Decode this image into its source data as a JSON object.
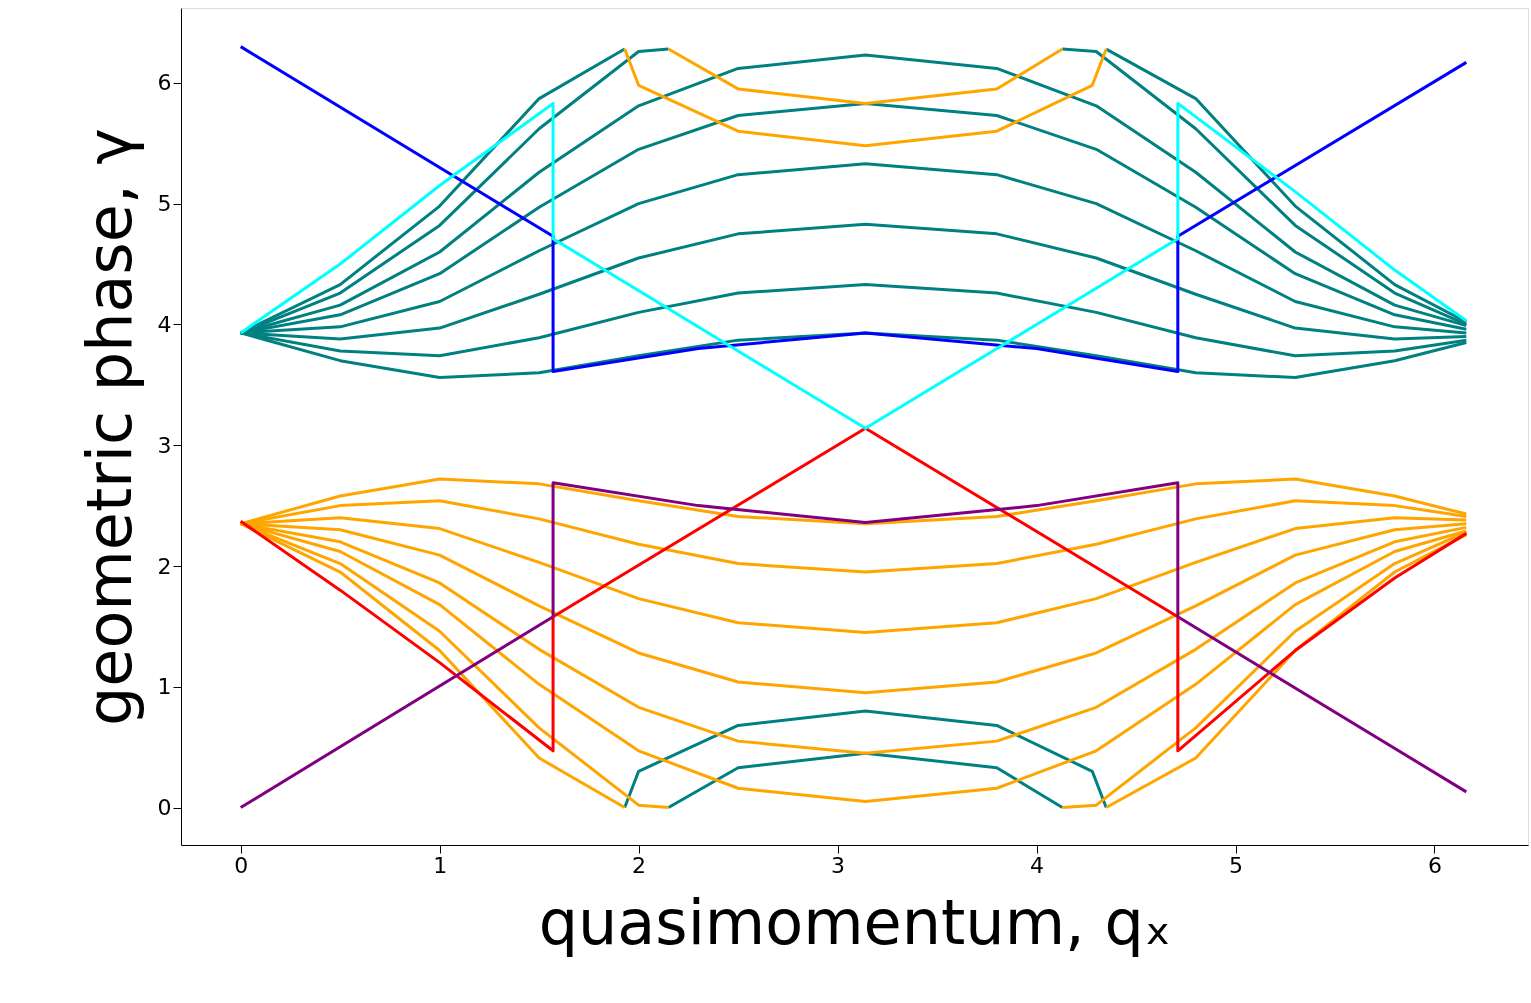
{
  "chart_data": {
    "type": "line",
    "xlabel": "quasimomentum, qₓ",
    "ylabel": "geometric phase, γ",
    "xlim": [
      -0.3,
      6.47
    ],
    "ylim": [
      -0.31,
      6.62
    ],
    "xticks": [
      0,
      1,
      2,
      3,
      4,
      5,
      6
    ],
    "yticks": [
      0,
      1,
      2,
      3,
      4,
      5,
      6
    ],
    "grid": false,
    "marker": "none",
    "line_style": "solid",
    "x": [
      0,
      0.5,
      1,
      1.5,
      2,
      2.5,
      3.14,
      3.8,
      4.3,
      4.8,
      5.3,
      5.8,
      6.16
    ],
    "series": [
      {
        "color": "#008080",
        "values": [
          3.93,
          3.7,
          3.56,
          3.6,
          3.74,
          3.87,
          3.93,
          3.87,
          3.74,
          3.6,
          3.56,
          3.7,
          3.85
        ]
      },
      {
        "color": "#008080",
        "values": [
          3.93,
          3.78,
          3.74,
          3.89,
          4.1,
          4.26,
          4.33,
          4.26,
          4.1,
          3.89,
          3.74,
          3.78,
          3.87
        ]
      },
      {
        "color": "#008080",
        "values": [
          3.93,
          3.88,
          3.97,
          4.25,
          4.55,
          4.75,
          4.83,
          4.75,
          4.55,
          4.25,
          3.97,
          3.88,
          3.9
        ]
      },
      {
        "color": "#008080",
        "values": [
          3.93,
          3.98,
          4.19,
          4.61,
          5.0,
          5.24,
          5.33,
          5.24,
          5.0,
          4.61,
          4.19,
          3.98,
          3.93
        ]
      },
      {
        "color": "#008080",
        "values": [
          3.93,
          4.08,
          4.42,
          4.97,
          5.45,
          5.73,
          5.83,
          5.73,
          5.45,
          4.97,
          4.42,
          4.08,
          3.96
        ]
      },
      {
        "color": "#008080",
        "values": [
          3.93,
          4.16,
          4.6,
          5.26,
          5.81,
          6.12,
          6.23,
          6.12,
          5.81,
          5.26,
          4.6,
          4.16,
          3.99
        ]
      },
      {
        "color": "#008080",
        "x": [
          0,
          0.5,
          1,
          1.5,
          2,
          2.15,
          3.14,
          4.13,
          4.3,
          4.8,
          5.3,
          5.8,
          6.16
        ],
        "values": [
          3.93,
          4.26,
          4.82,
          5.62,
          6.26,
          6.28,
          null,
          6.28,
          6.26,
          5.62,
          4.82,
          4.26,
          4.0
        ]
      },
      {
        "color": "#008080",
        "x": [
          2.15,
          2.5,
          3.14,
          3.8,
          4.13
        ],
        "values": [
          0,
          0.33,
          0.45,
          0.33,
          0
        ]
      },
      {
        "color": "#008080",
        "x": [
          0,
          0.5,
          1,
          1.5,
          1.93,
          3.14,
          4.35,
          4.8,
          5.3,
          5.8,
          6.16
        ],
        "values": [
          3.93,
          4.33,
          4.98,
          5.87,
          6.28,
          null,
          6.28,
          5.87,
          4.98,
          4.33,
          4.02
        ]
      },
      {
        "color": "#008080",
        "x": [
          1.93,
          2,
          2.5,
          3.14,
          3.8,
          4.28,
          4.35
        ],
        "values": [
          0,
          0.3,
          0.68,
          0.8,
          0.68,
          0.3,
          0
        ]
      },
      {
        "color": "#ffa500",
        "values": [
          2.35,
          2.58,
          2.72,
          2.68,
          2.54,
          2.41,
          2.35,
          2.41,
          2.54,
          2.68,
          2.72,
          2.58,
          2.43
        ]
      },
      {
        "color": "#ffa500",
        "values": [
          2.35,
          2.5,
          2.54,
          2.39,
          2.18,
          2.02,
          1.95,
          2.02,
          2.18,
          2.39,
          2.54,
          2.5,
          2.41
        ]
      },
      {
        "color": "#ffa500",
        "values": [
          2.35,
          2.4,
          2.31,
          2.03,
          1.73,
          1.53,
          1.45,
          1.53,
          1.73,
          2.03,
          2.31,
          2.4,
          2.38
        ]
      },
      {
        "color": "#ffa500",
        "values": [
          2.35,
          2.3,
          2.09,
          1.67,
          1.28,
          1.04,
          0.95,
          1.04,
          1.28,
          1.67,
          2.09,
          2.3,
          2.35
        ]
      },
      {
        "color": "#ffa500",
        "values": [
          2.35,
          2.2,
          1.86,
          1.31,
          0.83,
          0.55,
          0.45,
          0.55,
          0.83,
          1.31,
          1.86,
          2.2,
          2.32
        ]
      },
      {
        "color": "#ffa500",
        "values": [
          2.35,
          2.12,
          1.68,
          1.02,
          0.47,
          0.16,
          0.05,
          0.16,
          0.47,
          1.02,
          1.68,
          2.12,
          2.29
        ]
      },
      {
        "color": "#ffa500",
        "x": [
          0,
          0.5,
          1,
          1.5,
          2,
          2.15,
          3.14,
          4.13,
          4.3,
          4.8,
          5.3,
          5.8,
          6.16
        ],
        "values": [
          2.35,
          2.02,
          1.46,
          0.66,
          0.02,
          0,
          null,
          0,
          0.02,
          0.66,
          1.46,
          2.02,
          2.28
        ]
      },
      {
        "color": "#ffa500",
        "x": [
          2.15,
          2.5,
          3.14,
          3.8,
          4.13
        ],
        "values": [
          6.28,
          5.95,
          5.83,
          5.95,
          6.28
        ]
      },
      {
        "color": "#ffa500",
        "x": [
          0,
          0.5,
          1,
          1.5,
          1.93,
          3.14,
          4.35,
          4.8,
          5.3,
          5.8,
          6.16
        ],
        "values": [
          2.35,
          1.95,
          1.3,
          0.41,
          0,
          null,
          0,
          0.41,
          1.3,
          1.95,
          2.26
        ]
      },
      {
        "color": "#ffa500",
        "x": [
          1.93,
          2,
          2.5,
          3.14,
          3.8,
          4.28,
          4.35
        ],
        "values": [
          6.28,
          5.98,
          5.6,
          5.48,
          5.6,
          5.98,
          6.28
        ]
      },
      {
        "color": "#ff0000",
        "x": [
          0,
          0.5,
          1,
          1.57,
          1.57,
          3.14,
          4.71,
          4.71,
          5.3,
          5.8,
          6.16
        ],
        "values": [
          2.37,
          1.8,
          1.2,
          0.47,
          1.58,
          3.14,
          1.58,
          0.47,
          1.3,
          1.9,
          2.27
        ]
      },
      {
        "color": "#800080",
        "x": [
          0,
          1.57,
          1.57,
          2.3,
          3.14,
          4.0,
          4.71,
          4.71,
          6.16
        ],
        "values": [
          0,
          1.58,
          2.69,
          2.5,
          2.36,
          2.5,
          2.69,
          1.58,
          0.13
        ]
      },
      {
        "color": "#0000ff",
        "x": [
          0,
          1.57,
          1.57,
          2.3,
          3.14,
          4.0,
          4.71,
          4.71,
          6.16
        ],
        "values": [
          6.3,
          4.73,
          3.61,
          3.8,
          3.93,
          3.8,
          3.61,
          4.73,
          6.17
        ]
      },
      {
        "color": "#00ffff",
        "x": [
          0,
          0.5,
          1,
          1.57,
          1.57,
          3.14,
          4.71,
          4.71,
          5.3,
          5.8,
          6.16
        ],
        "values": [
          3.93,
          4.5,
          5.15,
          5.83,
          4.71,
          3.14,
          4.71,
          5.83,
          5.1,
          4.45,
          4.03
        ]
      }
    ]
  }
}
